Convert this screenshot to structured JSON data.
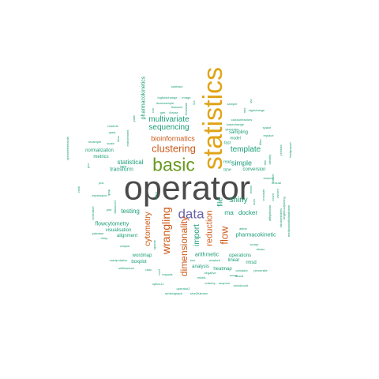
{
  "palette": {
    "dark": "#4a4a4a",
    "gold": "#e0a417",
    "green": "#669a1e",
    "orange": "#cc5a1a",
    "purple": "#6a62a8",
    "teal": "#1b9e77",
    "white": "#ffffff"
  },
  "words": {
    "operator": "operator",
    "statistics": "statistics",
    "basic": "basic",
    "data": "data",
    "clustering": "clustering",
    "bioinformatics": "bioinformatics",
    "wrangling": "wrangling",
    "dimensionality": "dimensionality",
    "flow": "flow",
    "reduction": "reduction",
    "multivariate": "multivariate",
    "sequencing": "sequencing",
    "template": "template",
    "import": "import",
    "shiny": "shiny",
    "cytometry": "cytometry",
    "simple": "simple",
    "statistical": "statistical",
    "testing": "testing",
    "transform": "transform",
    "rna": "rna",
    "docker": "docker",
    "file": "file",
    "pharmacokinetic": "pharmacokinetic",
    "pharmacokinetics": "pharmacokinetics",
    "normalization": "normalization",
    "metrics": "metrics",
    "visualisation": "visualisation",
    "flowcytometry": "flowcytometry",
    "alignment": "alignment",
    "arithmetic": "arithmetic",
    "linear": "linear",
    "operations": "operations",
    "wordmap": "wordmap",
    "boxplot": "boxplot",
    "heatmap": "heatmap",
    "analysis": "analysis",
    "rmsd": "rmsd",
    "conversion": "conversion",
    "tsne": "tsne",
    "read": "read",
    "fast": "fast",
    "sampling": "sampling",
    "model": "model",
    "calcsumfactors": "calcsumfactors",
    "basechange": "basechange",
    "genomics": "genomics",
    "sample": "sample",
    "signchange": "signchange",
    "downsample": "downsample",
    "logfoldchange": "logfoldchange",
    "image": "image",
    "subtract": "subtract",
    "umap": "umap",
    "mixed": "mixed",
    "masked": "masked",
    "constant": "constant",
    "percentile": "percentile",
    "round": "round",
    "negative": "negative",
    "orderby": "orderby",
    "seqmon": "seqmon",
    "wordcount": "wordcount",
    "optics11": "optics11",
    "operator2": "operator2",
    "rphisiograph": "rphisiograph",
    "sine2fukrsen": "sine2fukrsen",
    "manipulation": "manipulation",
    "oldflowsom": "oldflowsom",
    "cellplot": "cellplot",
    "expression": "expression",
    "pairwise": "pairwise",
    "rtimp": "rtimp",
    "readrds": "readrds",
    "qsea": "qsea",
    "entrichment": "entrichment",
    "bins": "bins",
    "resample": "resample",
    "scale": "scale",
    "flowse": "flowse",
    "flowsom": "flowsom",
    "icomp": "icomp",
    "nlearn": "nlearn",
    "replace": "replace",
    "space": "space",
    "identify": "identify",
    "product": "product",
    "filter": "filter",
    "trim": "trim",
    "mean": "mean",
    "sum": "sum",
    "count": "count",
    "dummy": "dummy",
    "textual": "textual",
    "cluster": "cluster",
    "zscore": "zscore",
    "attine": "attine",
    "ruts": "ruts",
    "viz": "viz",
    "opennetherlands": "opennetherlands",
    "fastqreport": "fastqreport",
    "neighbourjoining": "neighbourjoining",
    "randomtables": "randomtables",
    "mediantobilitdataframe": "mediantobilitdataframe",
    "diffsplitdata": "diffsplitdata",
    "crosstab": "crosstab",
    "distance2": "distance2",
    "normalize": "normalize",
    "pca": "pca",
    "plot": "plot",
    "pcs": "pcs",
    "two": "two",
    "ratio": "ratio",
    "imports": "imports",
    "factor": "factor",
    "sparse": "sparse",
    "coef": "coef",
    "gmt": "gmt",
    "rna2": "rna",
    "flowstats": "flowstats",
    "fcs": "fcs",
    "plate": "plate",
    "track": "track",
    "rank": "rank",
    "qrap": "qrap"
  }
}
